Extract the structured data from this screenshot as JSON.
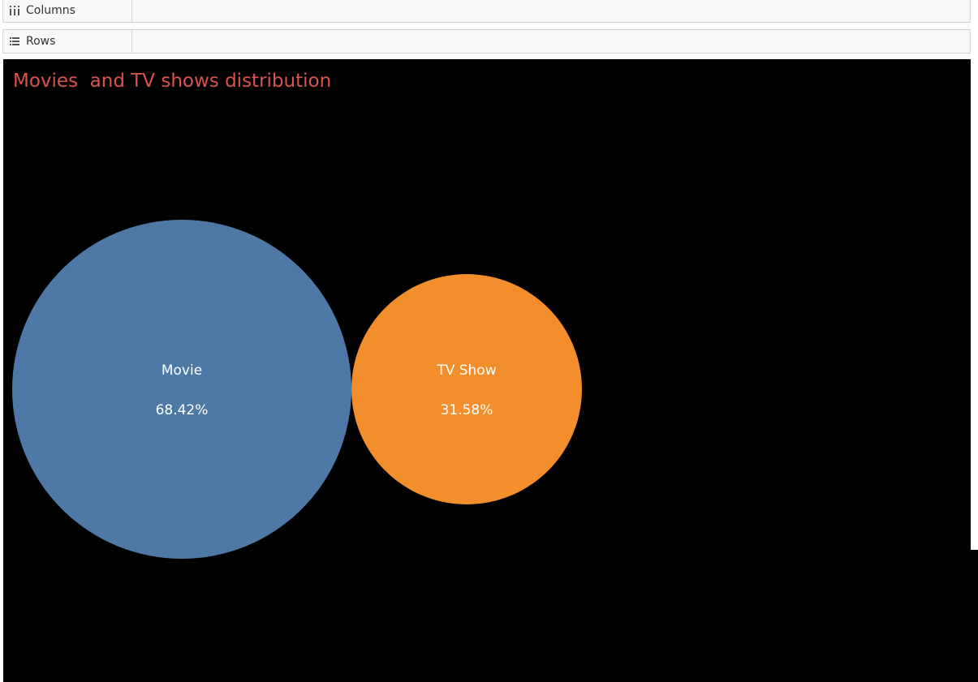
{
  "shelves": {
    "columns_label": "Columns",
    "rows_label": "Rows"
  },
  "colors": {
    "title": "#d9534f",
    "background": "#000000",
    "label": "#ffffff"
  },
  "chart_data": {
    "type": "bubble",
    "title": "Movies  and TV shows distribution",
    "series": [
      {
        "name": "Movie",
        "value": 68.42,
        "label": "68.42%",
        "color": "#4e79a7"
      },
      {
        "name": "TV Show",
        "value": 31.58,
        "label": "31.58%",
        "color": "#f28e2b"
      }
    ]
  }
}
